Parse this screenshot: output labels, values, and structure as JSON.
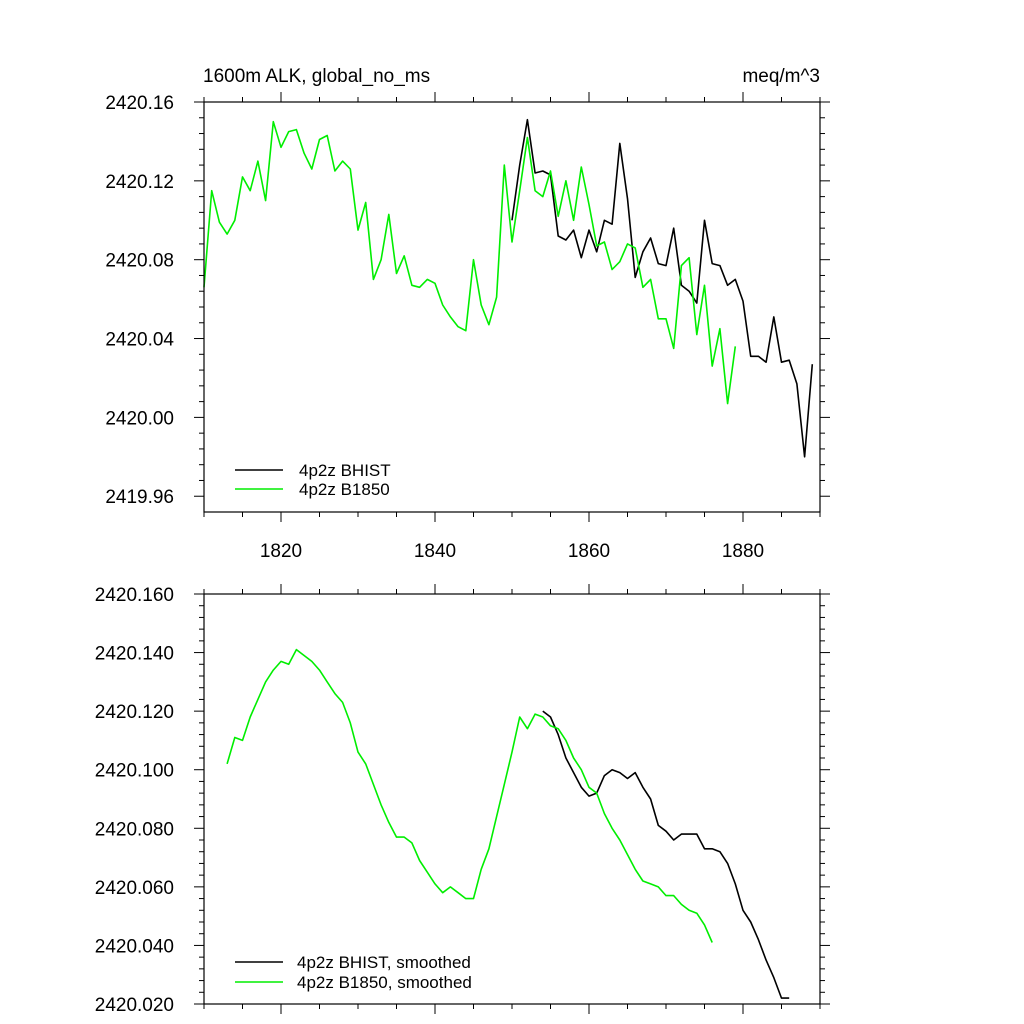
{
  "colors": {
    "bhist": "#000000",
    "b1850": "#00ee00"
  },
  "chart_data": [
    {
      "type": "line",
      "title": "1600m ALK, global_no_ms",
      "units": "meq/m^3",
      "xlabel": "",
      "ylabel": "",
      "xlim": [
        1810,
        1890
      ],
      "ylim": [
        2419.952,
        2420.16
      ],
      "xticks": [
        1820,
        1840,
        1860,
        1880
      ],
      "xtick_labels": [
        "1820",
        "1840",
        "1860",
        "1880"
      ],
      "yticks": [
        2419.96,
        2420.0,
        2420.04,
        2420.08,
        2420.12,
        2420.16
      ],
      "ytick_labels": [
        "2419.96",
        "2420.00",
        "2420.04",
        "2420.08",
        "2420.12",
        "2420.16"
      ],
      "legend_position": "bottom-left",
      "series": [
        {
          "name": "4p2z BHIST",
          "color_key": "bhist",
          "x": [
            1850,
            1851,
            1852,
            1853,
            1854,
            1855,
            1856,
            1857,
            1858,
            1859,
            1860,
            1861,
            1862,
            1863,
            1864,
            1865,
            1866,
            1867,
            1868,
            1869,
            1870,
            1871,
            1872,
            1873,
            1874,
            1875,
            1876,
            1877,
            1878,
            1879,
            1880,
            1881,
            1882,
            1883,
            1884,
            1885,
            1886,
            1887,
            1888,
            1889
          ],
          "y": [
            2420.1,
            2420.128,
            2420.151,
            2420.124,
            2420.125,
            2420.123,
            2420.092,
            2420.09,
            2420.095,
            2420.081,
            2420.095,
            2420.084,
            2420.1,
            2420.098,
            2420.139,
            2420.111,
            2420.071,
            2420.084,
            2420.091,
            2420.078,
            2420.077,
            2420.096,
            2420.067,
            2420.064,
            2420.058,
            2420.1,
            2420.078,
            2420.077,
            2420.067,
            2420.07,
            2420.059,
            2420.031,
            2420.031,
            2420.028,
            2420.051,
            2420.028,
            2420.029,
            2420.017,
            2419.98,
            2420.027
          ]
        },
        {
          "name": "4p2z B1850",
          "color_key": "b1850",
          "x": [
            1810,
            1811,
            1812,
            1813,
            1814,
            1815,
            1816,
            1817,
            1818,
            1819,
            1820,
            1821,
            1822,
            1823,
            1824,
            1825,
            1826,
            1827,
            1828,
            1829,
            1830,
            1831,
            1832,
            1833,
            1834,
            1835,
            1836,
            1837,
            1838,
            1839,
            1840,
            1841,
            1842,
            1843,
            1844,
            1845,
            1846,
            1847,
            1848,
            1849,
            1850,
            1851,
            1852,
            1853,
            1854,
            1855,
            1856,
            1857,
            1858,
            1859,
            1860,
            1861,
            1862,
            1863,
            1864,
            1865,
            1866,
            1867,
            1868,
            1869,
            1870,
            1871,
            1872,
            1873,
            1874,
            1875,
            1876,
            1877,
            1878,
            1879
          ],
          "y": [
            2420.066,
            2420.115,
            2420.099,
            2420.093,
            2420.1,
            2420.122,
            2420.115,
            2420.13,
            2420.11,
            2420.15,
            2420.137,
            2420.145,
            2420.146,
            2420.134,
            2420.126,
            2420.141,
            2420.143,
            2420.125,
            2420.13,
            2420.126,
            2420.095,
            2420.109,
            2420.07,
            2420.08,
            2420.103,
            2420.073,
            2420.082,
            2420.067,
            2420.066,
            2420.07,
            2420.068,
            2420.057,
            2420.051,
            2420.046,
            2420.044,
            2420.08,
            2420.057,
            2420.047,
            2420.061,
            2420.128,
            2420.089,
            2420.115,
            2420.142,
            2420.115,
            2420.112,
            2420.125,
            2420.102,
            2420.12,
            2420.1,
            2420.127,
            2420.108,
            2420.087,
            2420.089,
            2420.075,
            2420.079,
            2420.088,
            2420.086,
            2420.066,
            2420.07,
            2420.05,
            2420.05,
            2420.035,
            2420.077,
            2420.081,
            2420.042,
            2420.067,
            2420.026,
            2420.045,
            2420.007,
            2420.036
          ]
        }
      ]
    },
    {
      "type": "line",
      "title": "",
      "xlabel": "",
      "ylabel": "",
      "xlim": [
        1810,
        1890
      ],
      "ylim": [
        2420.02,
        2420.16
      ],
      "xticks": [
        1820,
        1840,
        1860,
        1880
      ],
      "xtick_labels": [],
      "yticks": [
        2420.02,
        2420.04,
        2420.06,
        2420.08,
        2420.1,
        2420.12,
        2420.14,
        2420.16
      ],
      "ytick_labels": [
        "2420.020",
        "2420.040",
        "2420.060",
        "2420.080",
        "2420.100",
        "2420.120",
        "2420.140",
        "2420.160"
      ],
      "legend_position": "bottom-left",
      "series": [
        {
          "name": "4p2z BHIST, smoothed",
          "color_key": "bhist",
          "x": [
            1854,
            1855,
            1856,
            1857,
            1858,
            1859,
            1860,
            1861,
            1862,
            1863,
            1864,
            1865,
            1866,
            1867,
            1868,
            1869,
            1870,
            1871,
            1872,
            1873,
            1874,
            1875,
            1876,
            1877,
            1878,
            1879,
            1880,
            1881,
            1882,
            1883,
            1884,
            1885,
            1886
          ],
          "y": [
            2420.12,
            2420.118,
            2420.112,
            2420.104,
            2420.099,
            2420.094,
            2420.091,
            2420.092,
            2420.098,
            2420.1,
            2420.099,
            2420.097,
            2420.099,
            2420.094,
            2420.09,
            2420.081,
            2420.079,
            2420.076,
            2420.078,
            2420.078,
            2420.078,
            2420.073,
            2420.073,
            2420.072,
            2420.068,
            2420.061,
            2420.052,
            2420.048,
            2420.042,
            2420.035,
            2420.029,
            2420.022,
            2420.022
          ]
        },
        {
          "name": "4p2z B1850, smoothed",
          "color_key": "b1850",
          "x": [
            1813,
            1814,
            1815,
            1816,
            1817,
            1818,
            1819,
            1820,
            1821,
            1822,
            1823,
            1824,
            1825,
            1826,
            1827,
            1828,
            1829,
            1830,
            1831,
            1832,
            1833,
            1834,
            1835,
            1836,
            1837,
            1838,
            1839,
            1840,
            1841,
            1842,
            1843,
            1844,
            1845,
            1846,
            1847,
            1848,
            1849,
            1850,
            1851,
            1852,
            1853,
            1854,
            1855,
            1856,
            1857,
            1858,
            1859,
            1860,
            1861,
            1862,
            1863,
            1864,
            1865,
            1866,
            1867,
            1868,
            1869,
            1870,
            1871,
            1872,
            1873,
            1874,
            1875,
            1876
          ],
          "y": [
            2420.102,
            2420.111,
            2420.11,
            2420.118,
            2420.124,
            2420.13,
            2420.134,
            2420.137,
            2420.136,
            2420.141,
            2420.139,
            2420.137,
            2420.134,
            2420.13,
            2420.126,
            2420.123,
            2420.116,
            2420.106,
            2420.102,
            2420.095,
            2420.088,
            2420.082,
            2420.077,
            2420.077,
            2420.075,
            2420.069,
            2420.065,
            2420.061,
            2420.058,
            2420.06,
            2420.058,
            2420.056,
            2420.056,
            2420.066,
            2420.073,
            2420.084,
            2420.095,
            2420.106,
            2420.118,
            2420.114,
            2420.119,
            2420.118,
            2420.115,
            2420.114,
            2420.11,
            2420.104,
            2420.1,
            2420.094,
            2420.092,
            2420.085,
            2420.08,
            2420.076,
            2420.071,
            2420.066,
            2420.062,
            2420.061,
            2420.06,
            2420.057,
            2420.057,
            2420.054,
            2420.052,
            2420.051,
            2420.047,
            2420.041
          ]
        }
      ]
    }
  ]
}
